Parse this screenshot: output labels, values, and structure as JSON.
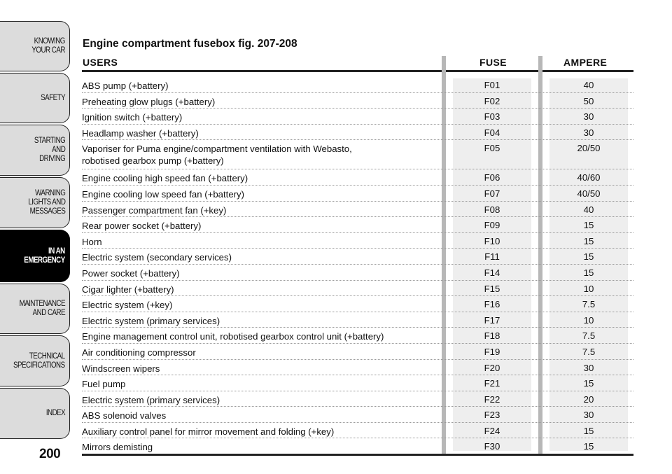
{
  "tabs": [
    {
      "label": "KNOWING\nYOUR CAR",
      "active": false
    },
    {
      "label": "SAFETY",
      "active": false
    },
    {
      "label": "STARTING\nAND\nDRIVING",
      "active": false
    },
    {
      "label": "WARNING\nLIGHTS AND\nMESSAGES",
      "active": false
    },
    {
      "label": "IN AN\nEMERGENCY",
      "active": true
    },
    {
      "label": "MAINTENANCE\nAND CARE",
      "active": false
    },
    {
      "label": "TECHNICAL\nSPECIFICATIONS",
      "active": false
    },
    {
      "label": "INDEX",
      "active": false
    }
  ],
  "page_number": "200",
  "title": "Engine compartment fusebox fig. 207-208",
  "headers": {
    "users": "USERS",
    "fuse": "FUSE",
    "ampere": "AMPERE"
  },
  "rows": [
    {
      "user": "ABS pump (+battery)",
      "fuse": "F01",
      "ampere": "40"
    },
    {
      "user": "Preheating glow plugs (+battery)",
      "fuse": "F02",
      "ampere": "50"
    },
    {
      "user": "Ignition switch (+battery)",
      "fuse": "F03",
      "ampere": "30"
    },
    {
      "user": "Headlamp washer (+battery)",
      "fuse": "F04",
      "ampere": "30"
    },
    {
      "user": "Vaporiser for Puma engine/compartment ventilation with Webasto,\nrobotised gearbox pump (+battery)",
      "fuse": "F05",
      "ampere": "20/50"
    },
    {
      "user": "Engine cooling high speed fan (+battery)",
      "fuse": "F06",
      "ampere": "40/60"
    },
    {
      "user": "Engine cooling low speed fan (+battery)",
      "fuse": "F07",
      "ampere": "40/50"
    },
    {
      "user": "Passenger compartment fan (+key)",
      "fuse": "F08",
      "ampere": "40"
    },
    {
      "user": "Rear power socket (+battery)",
      "fuse": "F09",
      "ampere": "15"
    },
    {
      "user": "Horn",
      "fuse": "F10",
      "ampere": "15"
    },
    {
      "user": "Electric system (secondary services)",
      "fuse": "F11",
      "ampere": "15"
    },
    {
      "user": "Power socket (+battery)",
      "fuse": "F14",
      "ampere": "15"
    },
    {
      "user": "Cigar lighter (+battery)",
      "fuse": "F15",
      "ampere": "10"
    },
    {
      "user": "Electric system (+key)",
      "fuse": "F16",
      "ampere": "7.5"
    },
    {
      "user": "Electric system (primary services)",
      "fuse": "F17",
      "ampere": "10"
    },
    {
      "user": "Engine management control unit, robotised gearbox control unit (+battery)",
      "fuse": "F18",
      "ampere": "7.5"
    },
    {
      "user": "Air conditioning compressor",
      "fuse": "F19",
      "ampere": "7.5"
    },
    {
      "user": "Windscreen wipers",
      "fuse": "F20",
      "ampere": "30"
    },
    {
      "user": "Fuel pump",
      "fuse": "F21",
      "ampere": "15"
    },
    {
      "user": "Electric system (primary services)",
      "fuse": "F22",
      "ampere": "20"
    },
    {
      "user": "ABS solenoid valves",
      "fuse": "F23",
      "ampere": "30"
    },
    {
      "user": "Auxiliary control panel for mirror movement and folding (+key)",
      "fuse": "F24",
      "ampere": "15"
    },
    {
      "user": "Mirrors demisting",
      "fuse": "F30",
      "ampere": "15"
    }
  ]
}
